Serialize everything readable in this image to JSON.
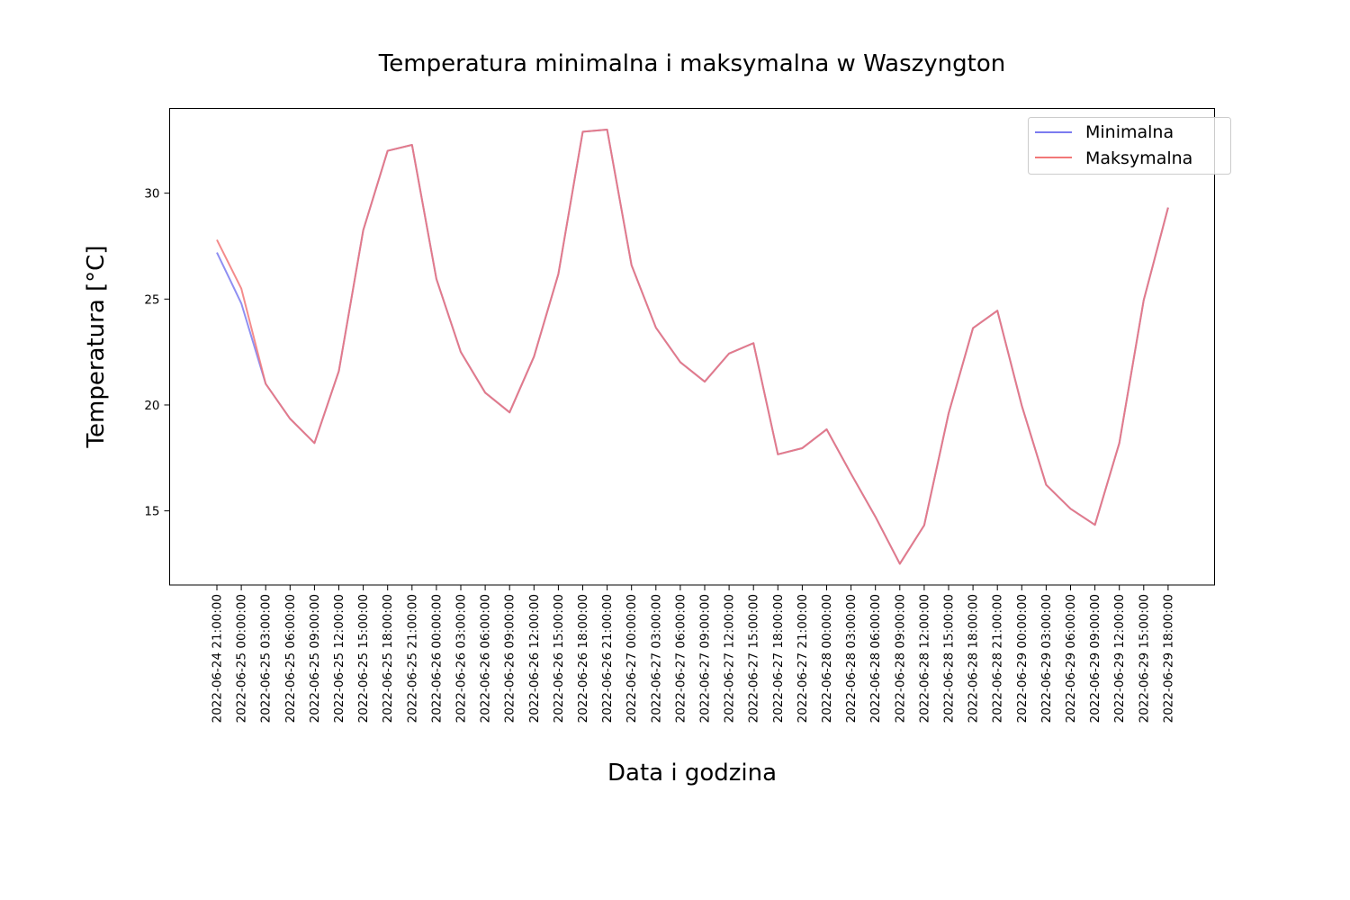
{
  "chart_data": {
    "type": "line",
    "title": "Temperatura minimalna i maksymalna w Waszyngton",
    "xlabel": "Data i godzina",
    "ylabel": "Temperatura [°C]",
    "ylim": [
      11.5,
      34.0
    ],
    "yticks": [
      15,
      20,
      25,
      30
    ],
    "grid": false,
    "legend_position": "top-right",
    "x": [
      "2022-06-24 21:00:00",
      "2022-06-25 00:00:00",
      "2022-06-25 03:00:00",
      "2022-06-25 06:00:00",
      "2022-06-25 09:00:00",
      "2022-06-25 12:00:00",
      "2022-06-25 15:00:00",
      "2022-06-25 18:00:00",
      "2022-06-25 21:00:00",
      "2022-06-26 00:00:00",
      "2022-06-26 03:00:00",
      "2022-06-26 06:00:00",
      "2022-06-26 09:00:00",
      "2022-06-26 12:00:00",
      "2022-06-26 15:00:00",
      "2022-06-26 18:00:00",
      "2022-06-26 21:00:00",
      "2022-06-27 00:00:00",
      "2022-06-27 03:00:00",
      "2022-06-27 06:00:00",
      "2022-06-27 09:00:00",
      "2022-06-27 12:00:00",
      "2022-06-27 15:00:00",
      "2022-06-27 18:00:00",
      "2022-06-27 21:00:00",
      "2022-06-28 00:00:00",
      "2022-06-28 03:00:00",
      "2022-06-28 06:00:00",
      "2022-06-28 09:00:00",
      "2022-06-28 12:00:00",
      "2022-06-28 15:00:00",
      "2022-06-28 18:00:00",
      "2022-06-28 21:00:00",
      "2022-06-29 00:00:00",
      "2022-06-29 03:00:00",
      "2022-06-29 06:00:00",
      "2022-06-29 09:00:00",
      "2022-06-29 12:00:00",
      "2022-06-29 15:00:00",
      "2022-06-29 18:00:00"
    ],
    "series": [
      {
        "name": "Minimalna",
        "color": "#7b7bf0",
        "values": [
          27.2,
          24.8,
          21.0,
          19.35,
          18.2,
          21.6,
          28.25,
          32.0,
          32.28,
          25.95,
          22.5,
          20.58,
          19.65,
          22.28,
          26.18,
          32.9,
          33.0,
          26.6,
          23.65,
          22.02,
          21.1,
          22.43,
          22.92,
          17.67,
          17.96,
          18.85,
          16.75,
          14.72,
          12.5,
          14.32,
          19.6,
          23.63,
          24.45,
          19.97,
          16.23,
          15.1,
          14.34,
          18.2,
          24.95,
          29.32
        ]
      },
      {
        "name": "Maksymalna",
        "color": "#f27878",
        "values": [
          27.8,
          25.5,
          21.0,
          19.35,
          18.2,
          21.6,
          28.25,
          32.0,
          32.28,
          25.95,
          22.5,
          20.58,
          19.65,
          22.28,
          26.18,
          32.9,
          33.0,
          26.6,
          23.65,
          22.02,
          21.1,
          22.43,
          22.92,
          17.67,
          17.96,
          18.85,
          16.75,
          14.72,
          12.5,
          14.32,
          19.6,
          23.63,
          24.45,
          19.97,
          16.23,
          15.1,
          14.34,
          18.2,
          24.95,
          29.32
        ]
      }
    ]
  }
}
